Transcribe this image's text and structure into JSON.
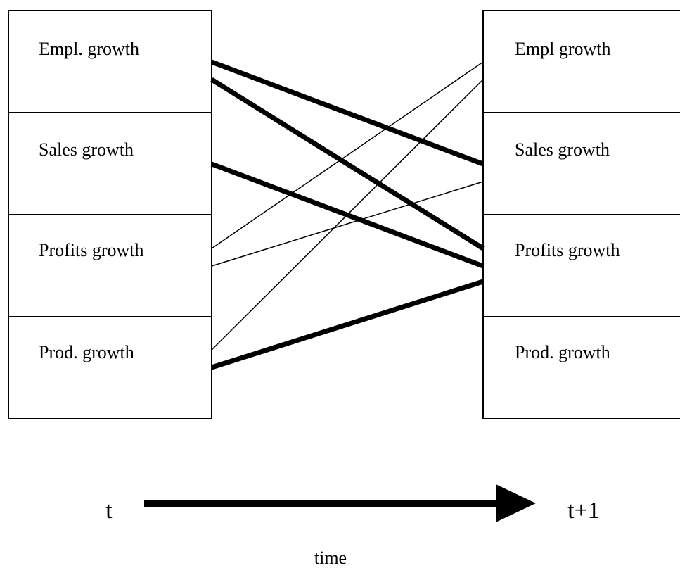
{
  "left_nodes": [
    {
      "label": "Empl. growth"
    },
    {
      "label": "Sales growth"
    },
    {
      "label": "Profits growth"
    },
    {
      "label": "Prod. growth"
    }
  ],
  "right_nodes": [
    {
      "label": "Empl growth"
    },
    {
      "label": "Sales growth"
    },
    {
      "label": "Profits growth"
    },
    {
      "label": "Prod. growth"
    }
  ],
  "time_axis": {
    "start": "t",
    "end": "t+1",
    "label": "time"
  }
}
